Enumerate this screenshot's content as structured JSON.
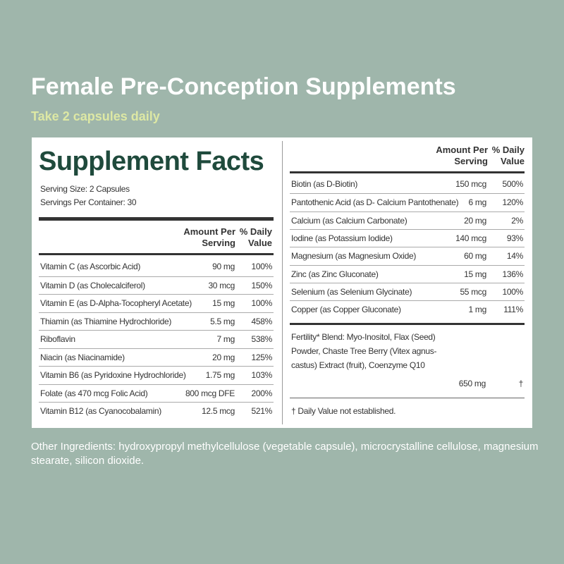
{
  "header": {
    "title": "Female Pre-Conception Supplements",
    "subtitle": "Take 2 capsules daily"
  },
  "left": {
    "title": "Supplement Facts",
    "serving_size": "Serving Size: 2 Capsules",
    "servings_per_container": "Servings Per Container: 30",
    "columns": [
      "Amount Per Serving",
      "% Daily Value"
    ],
    "rows": [
      [
        "Vitamin C (as Ascorbic Acid)",
        "90 mg",
        "100%"
      ],
      [
        "Vitamin D (as Cholecalciferol)",
        "30 mcg",
        "150%"
      ],
      [
        "Vitamin E (as D-Alpha-Tocopheryl Acetate)",
        "15 mg",
        "100%"
      ],
      [
        "Thiamin (as Thiamine Hydrochloride)",
        "5.5 mg",
        "458%"
      ],
      [
        "Riboflavin",
        "7 mg",
        "538%"
      ],
      [
        "Niacin (as Niacinamide)",
        "20 mg",
        "125%"
      ],
      [
        "Vitamin B6 (as Pyridoxine Hydrochloride)",
        "1.75 mg",
        "103%"
      ],
      [
        "Folate (as 470 mcg Folic Acid)",
        "800 mcg DFE",
        "200%"
      ],
      [
        "Vitamin B12 (as Cyanocobalamin)",
        "12.5 mcg",
        "521%"
      ]
    ]
  },
  "right": {
    "columns": [
      "Amount Per Serving",
      "% Daily Value"
    ],
    "rows": [
      [
        "Biotin (as D-Biotin)",
        "150 mcg",
        "500%"
      ],
      [
        "Pantothenic Acid (as D- Calcium Pantothenate)",
        "6 mg",
        "120%"
      ],
      [
        "Calcium (as Calcium Carbonate)",
        "20 mg",
        "2%"
      ],
      [
        "Iodine (as Potassium Iodide)",
        "140 mcg",
        "93%"
      ],
      [
        "Magnesium (as Magnesium Oxide)",
        "60 mg",
        "14%"
      ],
      [
        "Zinc (as Zinc Gluconate)",
        "15 mg",
        "136%"
      ],
      [
        "Selenium (as Selenium Glycinate)",
        "55 mcg",
        "100%"
      ],
      [
        "Copper (as Copper Gluconate)",
        "1 mg",
        "111%"
      ]
    ],
    "blend": {
      "text": "Fertility* Blend: Myo-Inositol, Flax (Seed) Powder, Chaste Tree Berry (Vitex agnus-castus) Extract (fruit), Coenzyme Q10",
      "amount": "650 mg",
      "dv": "†"
    },
    "footnote": "† Daily Value not established."
  },
  "other_ingredients": "Other Ingredients: hydroxypropyl methylcellulose (vegetable capsule), microcrystalline cellulose, magnesium stearate, silicon dioxide."
}
